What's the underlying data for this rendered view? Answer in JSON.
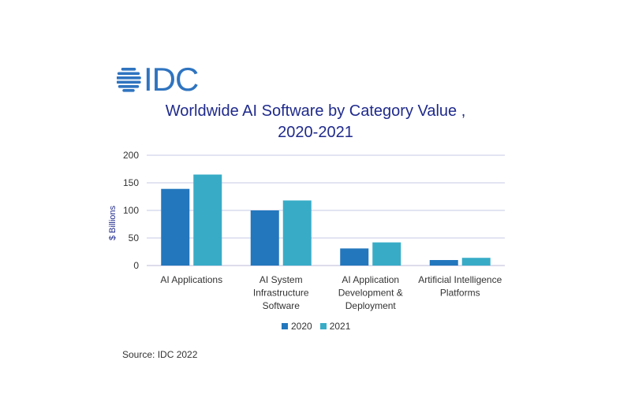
{
  "logo_text": "IDC",
  "colors": {
    "logo": "#2f74c0",
    "title": "#1f2a8c",
    "series_2020": "#2377bd",
    "series_2021": "#38acc7",
    "grid": "#c6c8e6",
    "text": "#333333"
  },
  "source": "Source: IDC 2022",
  "chart_data": {
    "type": "bar",
    "title_lines": [
      "Worldwide AI Software by Category Value ,",
      "2020-2021"
    ],
    "ylabel": "$ Billions",
    "xlabel": "",
    "ylim": [
      0,
      200
    ],
    "yticks": [
      0,
      50,
      100,
      150,
      200
    ],
    "categories": [
      [
        "AI Applications"
      ],
      [
        "AI System",
        "Infrastructure",
        "Software"
      ],
      [
        "AI Application",
        "Development &",
        "Deployment"
      ],
      [
        "Artificial Intelligence",
        "Platforms"
      ]
    ],
    "series": [
      {
        "name": "2020",
        "values": [
          139,
          100,
          31,
          10
        ]
      },
      {
        "name": "2021",
        "values": [
          165,
          118,
          42,
          14
        ]
      }
    ],
    "legend_position": "bottom",
    "grid": true
  }
}
